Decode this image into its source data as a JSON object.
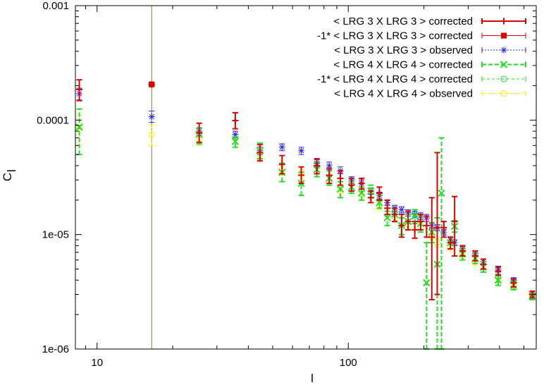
{
  "chart_data": {
    "type": "scatter",
    "title": "",
    "xlabel": "l",
    "ylabel": "C_l",
    "xscale": "log",
    "yscale": "log",
    "xlim": [
      8.2,
      560
    ],
    "ylim": [
      1e-06,
      0.001
    ],
    "x_ticks": [
      {
        "value": 10,
        "label": "10"
      },
      {
        "value": 100,
        "label": "100"
      }
    ],
    "y_ticks": [
      {
        "value": 0.001,
        "label": "0.001"
      },
      {
        "value": 0.0001,
        "label": "0.0001"
      },
      {
        "value": 1e-05,
        "label": "1e-05"
      },
      {
        "value": 1e-06,
        "label": "1e-06"
      }
    ],
    "grid": false,
    "legend_position": "top-right",
    "vertical_line": {
      "x": 16.5,
      "color": "#6b8e23"
    },
    "series": [
      {
        "name": "< LRG 3 X LRG 3 > corrected",
        "color": "#dd0000",
        "marker": "plus",
        "line": "solid",
        "points": [
          {
            "x": 8.5,
            "y": 0.000185,
            "lo": 0.000148,
            "hi": 0.000225
          },
          {
            "x": 16.5,
            "y": 0.000205,
            "lo": 0.000198,
            "hi": 0.000212
          },
          {
            "x": 25.5,
            "y": 7.7e-05,
            "lo": 6.4e-05,
            "hi": 9.4e-05
          },
          {
            "x": 35.5,
            "y": 9.9e-05,
            "lo": 8.4e-05,
            "hi": 0.000116
          },
          {
            "x": 44.5,
            "y": 5.2e-05,
            "lo": 4.4e-05,
            "hi": 6.1e-05
          },
          {
            "x": 54.5,
            "y": 4.1e-05,
            "lo": 3.4e-05,
            "hi": 4.9e-05
          },
          {
            "x": 65,
            "y": 3.3e-05,
            "lo": 2.8e-05,
            "hi": 3.9e-05
          },
          {
            "x": 75,
            "y": 4e-05,
            "lo": 3.4e-05,
            "hi": 4.6e-05
          },
          {
            "x": 84,
            "y": 3.3e-05,
            "lo": 2.8e-05,
            "hi": 3.8e-05
          },
          {
            "x": 93,
            "y": 3.1e-05,
            "lo": 2.7e-05,
            "hi": 3.6e-05
          },
          {
            "x": 103,
            "y": 2.7e-05,
            "lo": 2.4e-05,
            "hi": 3.1e-05
          },
          {
            "x": 113,
            "y": 2.8e-05,
            "lo": 2.5e-05,
            "hi": 3.1e-05
          },
          {
            "x": 123,
            "y": 2.1e-05,
            "lo": 1.9e-05,
            "hi": 2.4e-05
          },
          {
            "x": 133,
            "y": 2.3e-05,
            "lo": 2e-05,
            "hi": 2.6e-05
          },
          {
            "x": 143,
            "y": 1.7e-05,
            "lo": 1.5e-05,
            "hi": 2e-05
          },
          {
            "x": 153,
            "y": 1.5e-05,
            "lo": 1.3e-05,
            "hi": 1.7e-05
          },
          {
            "x": 163,
            "y": 1.2e-05,
            "lo": 9.5e-06,
            "hi": 1.5e-05
          },
          {
            "x": 173,
            "y": 1.3e-05,
            "lo": 1.1e-05,
            "hi": 1.6e-05
          },
          {
            "x": 184,
            "y": 1.1e-05,
            "lo": 9.3e-06,
            "hi": 1.3e-05
          },
          {
            "x": 194,
            "y": 1.3e-05,
            "lo": 1.1e-05,
            "hi": 1.5e-05
          },
          {
            "x": 205,
            "y": 1.2e-05,
            "lo": 9.5e-06,
            "hi": 1.45e-05
          },
          {
            "x": 215,
            "y": 9.5e-06,
            "lo": 2.7e-06,
            "hi": 2.1e-05
          },
          {
            "x": 226,
            "y": 1.15e-05,
            "lo": 3e-06,
            "hi": 5.2e-05
          },
          {
            "x": 240,
            "y": 1.15e-05,
            "lo": 9.5e-06,
            "hi": 1.3e-05
          },
          {
            "x": 255,
            "y": 8.5e-06,
            "lo": 7.5e-06,
            "hi": 9.5e-06
          },
          {
            "x": 265,
            "y": 1.3e-05,
            "lo": 6.5e-06,
            "hi": 2.15e-05
          },
          {
            "x": 285,
            "y": 7.2e-06,
            "lo": 6.5e-06,
            "hi": 8e-06
          },
          {
            "x": 320,
            "y": 6.5e-06,
            "lo": 5.9e-06,
            "hi": 7.2e-06
          },
          {
            "x": 345,
            "y": 5.5e-06,
            "lo": 5e-06,
            "hi": 6.1e-06
          },
          {
            "x": 395,
            "y": 4.8e-06,
            "lo": 4.4e-06,
            "hi": 5.2e-06
          },
          {
            "x": 455,
            "y": 3.8e-06,
            "lo": 3.5e-06,
            "hi": 4.1e-06
          },
          {
            "x": 540,
            "y": 3e-06,
            "lo": 2.8e-06,
            "hi": 3.2e-06
          }
        ]
      },
      {
        "name": "-1* < LRG 3 X LRG 3 > corrected",
        "color": "#dd0000",
        "marker": "filled-square",
        "line": "thin",
        "points": [
          {
            "x": 16.5,
            "y": 0.000205,
            "lo": 0.000198,
            "hi": 0.000212
          }
        ]
      },
      {
        "name": "< LRG 3 X LRG 3 > observed",
        "color": "#2222ee",
        "marker": "star",
        "line": "dotted",
        "points": [
          {
            "x": 8.5,
            "y": 0.00017,
            "lo": 0.00015,
            "hi": 0.00019
          },
          {
            "x": 16.5,
            "y": 0.000107,
            "lo": 9.55e-05,
            "hi": 0.00012
          },
          {
            "x": 25.5,
            "y": 8e-05,
            "lo": 7.4e-05,
            "hi": 8.6e-05
          },
          {
            "x": 35.5,
            "y": 7.5e-05,
            "lo": 7e-05,
            "hi": 8e-05
          },
          {
            "x": 44.5,
            "y": 5.4e-05,
            "lo": 5e-05,
            "hi": 5.8e-05
          },
          {
            "x": 54.5,
            "y": 5.8e-05,
            "lo": 5.4e-05,
            "hi": 6.2e-05
          },
          {
            "x": 65,
            "y": 5.4e-05,
            "lo": 5e-05,
            "hi": 5.8e-05
          },
          {
            "x": 75,
            "y": 4.2e-05,
            "lo": 3.9e-05,
            "hi": 4.5e-05
          },
          {
            "x": 84,
            "y": 4e-05,
            "lo": 3.7e-05,
            "hi": 4.3e-05
          },
          {
            "x": 93,
            "y": 3.6e-05,
            "lo": 3.4e-05,
            "hi": 3.9e-05
          },
          {
            "x": 103,
            "y": 3e-05,
            "lo": 2.8e-05,
            "hi": 3.2e-05
          },
          {
            "x": 113,
            "y": 2.8e-05,
            "lo": 2.6e-05,
            "hi": 3e-05
          },
          {
            "x": 123,
            "y": 2.4e-05,
            "lo": 2.25e-05,
            "hi": 2.55e-05
          },
          {
            "x": 133,
            "y": 2.2e-05,
            "lo": 2.05e-05,
            "hi": 2.35e-05
          },
          {
            "x": 143,
            "y": 1.9e-05,
            "lo": 1.8e-05,
            "hi": 2e-05
          },
          {
            "x": 153,
            "y": 1.7e-05,
            "lo": 1.6e-05,
            "hi": 1.8e-05
          },
          {
            "x": 163,
            "y": 1.65e-05,
            "lo": 1.55e-05,
            "hi": 1.75e-05
          },
          {
            "x": 173,
            "y": 1.55e-05,
            "lo": 1.45e-05,
            "hi": 1.65e-05
          },
          {
            "x": 184,
            "y": 1.5e-05,
            "lo": 1.4e-05,
            "hi": 1.6e-05
          },
          {
            "x": 194,
            "y": 1.45e-05,
            "lo": 1.35e-05,
            "hi": 1.55e-05
          },
          {
            "x": 205,
            "y": 1.4e-05,
            "lo": 1.3e-05,
            "hi": 1.5e-05
          },
          {
            "x": 215,
            "y": 1.2e-05,
            "lo": 1.13e-05,
            "hi": 1.27e-05
          },
          {
            "x": 226,
            "y": 1.15e-05,
            "lo": 1.08e-05,
            "hi": 1.22e-05
          },
          {
            "x": 240,
            "y": 1.05e-05,
            "lo": 9.9e-06,
            "hi": 1.11e-05
          },
          {
            "x": 255,
            "y": 9e-06,
            "lo": 8.5e-06,
            "hi": 9.5e-06
          },
          {
            "x": 265,
            "y": 8.5e-06,
            "lo": 8e-06,
            "hi": 9e-06
          },
          {
            "x": 285,
            "y": 7.5e-06,
            "lo": 7.1e-06,
            "hi": 7.9e-06
          },
          {
            "x": 320,
            "y": 6.8e-06,
            "lo": 6.4e-06,
            "hi": 7.2e-06
          },
          {
            "x": 345,
            "y": 5.8e-06,
            "lo": 5.5e-06,
            "hi": 6.1e-06
          },
          {
            "x": 395,
            "y": 5e-06,
            "lo": 4.7e-06,
            "hi": 5.3e-06
          },
          {
            "x": 455,
            "y": 4e-06,
            "lo": 3.8e-06,
            "hi": 4.2e-06
          },
          {
            "x": 540,
            "y": 3e-06,
            "lo": 2.9e-06,
            "hi": 3.1e-06
          }
        ]
      },
      {
        "name": "< LRG 4 X LRG 4 > corrected",
        "color": "#22dd22",
        "marker": "cross",
        "line": "dashed",
        "points": [
          {
            "x": 8.5,
            "y": 8.7e-05,
            "lo": 5e-05,
            "hi": 0.000125
          },
          {
            "x": 25.5,
            "y": 7.5e-05,
            "lo": 6.2e-05,
            "hi": 8.5e-05
          },
          {
            "x": 35.5,
            "y": 6.5e-05,
            "lo": 5.8e-05,
            "hi": 7.2e-05
          },
          {
            "x": 44.5,
            "y": 5.4e-05,
            "lo": 4.6e-05,
            "hi": 6.3e-05
          },
          {
            "x": 54.5,
            "y": 3.5e-05,
            "lo": 2.9e-05,
            "hi": 4.2e-05
          },
          {
            "x": 65,
            "y": 2.8e-05,
            "lo": 2.2e-05,
            "hi": 3.5e-05
          },
          {
            "x": 75,
            "y": 3.7e-05,
            "lo": 3.2e-05,
            "hi": 4.3e-05
          },
          {
            "x": 84,
            "y": 3.1e-05,
            "lo": 2.7e-05,
            "hi": 3.6e-05
          },
          {
            "x": 93,
            "y": 2.5e-05,
            "lo": 2.1e-05,
            "hi": 2.9e-05
          },
          {
            "x": 103,
            "y": 2.6e-05,
            "lo": 2.3e-05,
            "hi": 2.9e-05
          },
          {
            "x": 113,
            "y": 2.3e-05,
            "lo": 2e-05,
            "hi": 2.6e-05
          },
          {
            "x": 123,
            "y": 2.4e-05,
            "lo": 2.1e-05,
            "hi": 2.7e-05
          },
          {
            "x": 133,
            "y": 1.9e-05,
            "lo": 1.7e-05,
            "hi": 2.2e-05
          },
          {
            "x": 143,
            "y": 1.4e-05,
            "lo": 1.2e-05,
            "hi": 1.6e-05
          },
          {
            "x": 153,
            "y": 1.5e-05,
            "lo": 1.3e-05,
            "hi": 1.7e-05
          },
          {
            "x": 163,
            "y": 1.2e-05,
            "lo": 1e-05,
            "hi": 1.4e-05
          },
          {
            "x": 173,
            "y": 1.3e-05,
            "lo": 1.1e-05,
            "hi": 1.5e-05
          },
          {
            "x": 184,
            "y": 1.45e-05,
            "lo": 1.25e-05,
            "hi": 1.65e-05
          },
          {
            "x": 194,
            "y": 1.25e-05,
            "lo": 1.05e-05,
            "hi": 1.45e-05
          },
          {
            "x": 205,
            "y": 3.8e-06,
            "lo": 1e-06,
            "hi": 8.5e-06
          },
          {
            "x": 215,
            "y": 1.05e-05,
            "lo": 8.5e-06,
            "hi": 1.25e-05
          },
          {
            "x": 226,
            "y": 5.5e-06,
            "lo": 1e-06,
            "hi": 1.4e-05
          },
          {
            "x": 235,
            "y": 2.3e-05,
            "lo": 1e-06,
            "hi": 7e-05
          },
          {
            "x": 255,
            "y": 8.5e-06,
            "lo": 7.5e-06,
            "hi": 9.5e-06
          },
          {
            "x": 265,
            "y": 1.18e-05,
            "lo": 1.05e-05,
            "hi": 1.32e-05
          },
          {
            "x": 285,
            "y": 6.8e-06,
            "lo": 6e-06,
            "hi": 7.6e-06
          },
          {
            "x": 320,
            "y": 6.2e-06,
            "lo": 5.6e-06,
            "hi": 6.9e-06
          },
          {
            "x": 345,
            "y": 5.2e-06,
            "lo": 4.7e-06,
            "hi": 5.8e-06
          },
          {
            "x": 395,
            "y": 4e-06,
            "lo": 3.6e-06,
            "hi": 4.5e-06
          },
          {
            "x": 455,
            "y": 3.6e-06,
            "lo": 3.3e-06,
            "hi": 3.9e-06
          },
          {
            "x": 540,
            "y": 2.9e-06,
            "lo": 2.7e-06,
            "hi": 3.1e-06
          }
        ]
      },
      {
        "name": "-1* < LRG 4 X LRG 4 > corrected",
        "color": "#22dd22",
        "marker": "open-circle",
        "line": "thin-dashed",
        "points": [
          {
            "x": 16.5,
            "y": 0.000205,
            "lo": 0.000198,
            "hi": 0.000212
          }
        ]
      },
      {
        "name": "< LRG 4 X LRG 4 > observed",
        "color": "#ffee00",
        "marker": "open-circle",
        "line": "dash-dot",
        "points": [
          {
            "x": 8.5,
            "y": 8.5e-05,
            "lo": 6e-05,
            "hi": 0.00011
          },
          {
            "x": 16.5,
            "y": 7.5e-05,
            "lo": 6e-05,
            "hi": 9e-05
          },
          {
            "x": 25.5,
            "y": 6.8e-05,
            "lo": 6e-05,
            "hi": 7.6e-05
          },
          {
            "x": 44.5,
            "y": 5e-05,
            "lo": 4.5e-05,
            "hi": 5.5e-05
          },
          {
            "x": 54.5,
            "y": 3.7e-05,
            "lo": 3.3e-05,
            "hi": 4.1e-05
          },
          {
            "x": 65,
            "y": 3.5e-05,
            "lo": 3.1e-05,
            "hi": 3.9e-05
          },
          {
            "x": 93,
            "y": 2.6e-05,
            "lo": 2.3e-05,
            "hi": 2.9e-05
          },
          {
            "x": 113,
            "y": 2.2e-05,
            "lo": 2e-05,
            "hi": 2.4e-05
          },
          {
            "x": 133,
            "y": 1.8e-05,
            "lo": 1.65e-05,
            "hi": 1.95e-05
          },
          {
            "x": 153,
            "y": 1.4e-05,
            "lo": 1.3e-05,
            "hi": 1.5e-05
          },
          {
            "x": 173,
            "y": 1.2e-05,
            "lo": 1.1e-05,
            "hi": 1.3e-05
          },
          {
            "x": 194,
            "y": 1.15e-05,
            "lo": 1.05e-05,
            "hi": 1.25e-05
          },
          {
            "x": 215,
            "y": 9.5e-06,
            "lo": 8.5e-06,
            "hi": 1.05e-05
          },
          {
            "x": 226,
            "y": 8.5e-06,
            "lo": 7.8e-06,
            "hi": 9.2e-06
          },
          {
            "x": 255,
            "y": 7.8e-06,
            "lo": 7.2e-06,
            "hi": 8.5e-06
          },
          {
            "x": 285,
            "y": 6.8e-06,
            "lo": 6.3e-06,
            "hi": 7.3e-06
          },
          {
            "x": 320,
            "y": 5.8e-06,
            "lo": 5.4e-06,
            "hi": 6.2e-06
          },
          {
            "x": 395,
            "y": 4.2e-06,
            "lo": 3.9e-06,
            "hi": 4.5e-06
          },
          {
            "x": 455,
            "y": 3.6e-06,
            "lo": 3.4e-06,
            "hi": 3.8e-06
          },
          {
            "x": 540,
            "y": 2.9e-06,
            "lo": 2.8e-06,
            "hi": 3e-06
          }
        ]
      }
    ]
  }
}
